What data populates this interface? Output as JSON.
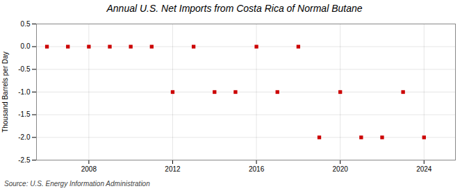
{
  "chart_data": {
    "type": "scatter",
    "title": "Annual U.S. Net Imports from Costa Rica of Normal Butane",
    "ylabel": "Thousand Barrels per Day",
    "source": "Source: U.S. Energy Information Administration",
    "x": [
      2006,
      2007,
      2008,
      2009,
      2010,
      2011,
      2012,
      2013,
      2014,
      2015,
      2016,
      2017,
      2018,
      2019,
      2020,
      2021,
      2022,
      2023,
      2024
    ],
    "values": [
      0,
      0,
      0,
      0,
      0,
      0,
      -1,
      0,
      -1,
      -1,
      0,
      -1,
      0,
      -2,
      -1,
      -2,
      -2,
      -1,
      -2
    ],
    "color": "#cc0000",
    "marker": "square",
    "xlim": [
      2005.5,
      2025.5
    ],
    "xticks": [
      2008,
      2012,
      2016,
      2020,
      2024
    ],
    "ylim": [
      -2.5,
      0.5
    ],
    "yticks": [
      0.5,
      {
        "value": 0,
        "label": "0.0"
      },
      -0.5,
      {
        "value": -1,
        "label": "-1.0"
      },
      -1.5,
      {
        "value": -2,
        "label": "-2.0"
      },
      -2.5
    ],
    "grid": true
  }
}
